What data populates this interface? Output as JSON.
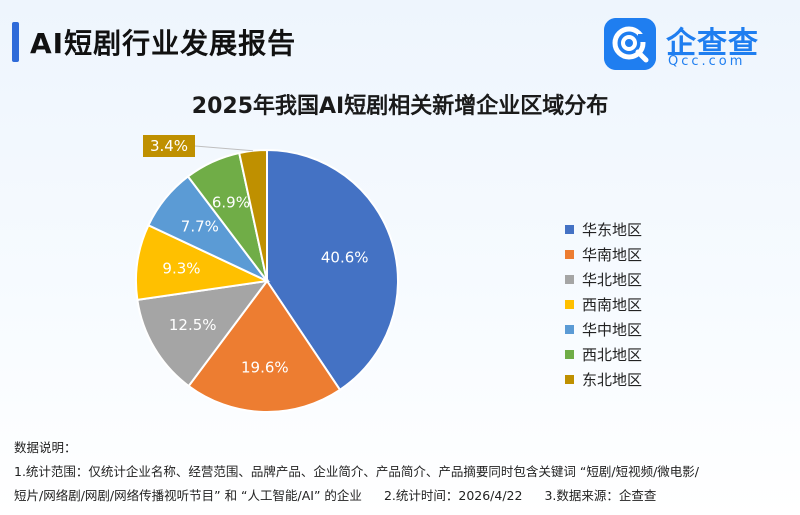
{
  "header": {
    "title": "AI短剧行业发展报告",
    "logo_name": "企查查",
    "logo_domain": "Qcc.com",
    "brand_color": "#1f7ef0"
  },
  "chart_data": {
    "type": "pie",
    "title": "2025年我国AI短剧相关新增企业区域分布",
    "unit": "%",
    "legend_position": "right",
    "slices": [
      {
        "label": "华东地区",
        "value": 40.6,
        "display": "40.6%",
        "color": "#4472c4"
      },
      {
        "label": "华南地区",
        "value": 19.6,
        "display": "19.6%",
        "color": "#ed7d31"
      },
      {
        "label": "华北地区",
        "value": 12.5,
        "display": "12.5%",
        "color": "#a5a5a5"
      },
      {
        "label": "西南地区",
        "value": 9.3,
        "display": "9.3%",
        "color": "#ffc000"
      },
      {
        "label": "华中地区",
        "value": 7.7,
        "display": "7.7%",
        "color": "#5b9bd5"
      },
      {
        "label": "西北地区",
        "value": 6.9,
        "display": "6.9%",
        "color": "#70ad47"
      },
      {
        "label": "东北地区",
        "value": 3.4,
        "display": "3.4%",
        "color": "#bf9000"
      }
    ]
  },
  "notes": {
    "heading": "数据说明：",
    "line1": "1.统计范围：仅统计企业名称、经营范围、品牌产品、企业简介、产品简介、产品摘要同时包含关键词 “短剧/短视频/微电影/",
    "line2": "短片/网络剧/网剧/网络传播视听节目” 和 “人工智能/AI” 的企业",
    "time": "2.统计时间：2026/4/22",
    "source": "3.数据来源：企查查"
  }
}
